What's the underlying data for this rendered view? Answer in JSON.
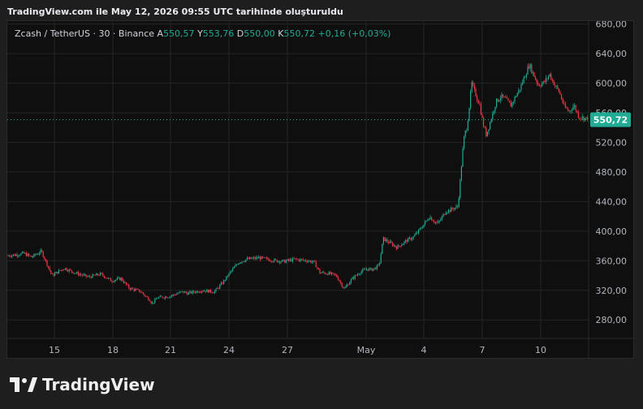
{
  "caption": "TradingView.com ile May 12, 2026 09:55 UTC tarihinde oluşturuldu",
  "legend": {
    "symbol": "Zcash / TetherUS · 30 · Binance",
    "open_label": "A",
    "open": "550,57",
    "high_label": "Y",
    "high": "553,76",
    "low_label": "D",
    "low": "550,00",
    "close_label": "K",
    "close": "550,72",
    "change": "+0,16 (+0,03%)"
  },
  "brand": "TradingView",
  "colors": {
    "up": "#22ab94",
    "down": "#f23645",
    "last_price": "#22ab94",
    "grid": "#242424"
  },
  "chart_data": {
    "type": "candlestick",
    "title": "Zcash / TetherUS · 30 · Binance",
    "ylim": [
      255,
      684
    ],
    "y_ticks": [
      "680,00",
      "640,00",
      "600,00",
      "560,00",
      "520,00",
      "480,00",
      "440,00",
      "400,00",
      "360,00",
      "320,00",
      "280,00"
    ],
    "y_tick_values": [
      680,
      640,
      600,
      560,
      520,
      480,
      440,
      400,
      360,
      320,
      280
    ],
    "x_ticks": [
      "15",
      "18",
      "21",
      "24",
      "27",
      "May",
      "4",
      "7",
      "10"
    ],
    "last_price": 550.72,
    "last_price_label": "550,72",
    "trend": [
      [
        0,
        367
      ],
      [
        10,
        368
      ],
      [
        20,
        370
      ],
      [
        30,
        365
      ],
      [
        42,
        373
      ],
      [
        55,
        340
      ],
      [
        70,
        350
      ],
      [
        85,
        343
      ],
      [
        100,
        338
      ],
      [
        115,
        342
      ],
      [
        128,
        333
      ],
      [
        140,
        336
      ],
      [
        150,
        323
      ],
      [
        160,
        320
      ],
      [
        165,
        318
      ],
      [
        170,
        312
      ],
      [
        175,
        308
      ],
      [
        178,
        302
      ],
      [
        185,
        310
      ],
      [
        200,
        312
      ],
      [
        210,
        316
      ],
      [
        216,
        318
      ],
      [
        222,
        316
      ],
      [
        240,
        320
      ],
      [
        255,
        318
      ],
      [
        265,
        330
      ],
      [
        275,
        345
      ],
      [
        285,
        358
      ],
      [
        295,
        362
      ],
      [
        310,
        364
      ],
      [
        325,
        361
      ],
      [
        340,
        359
      ],
      [
        355,
        362
      ],
      [
        370,
        360
      ],
      [
        378,
        358
      ],
      [
        385,
        344
      ],
      [
        395,
        343
      ],
      [
        405,
        340
      ],
      [
        415,
        322
      ],
      [
        425,
        336
      ],
      [
        435,
        345
      ],
      [
        443,
        349
      ],
      [
        448,
        348
      ],
      [
        453,
        350
      ],
      [
        458,
        354
      ],
      [
        460,
        368
      ],
      [
        463,
        390
      ],
      [
        470,
        385
      ],
      [
        480,
        378
      ],
      [
        490,
        386
      ],
      [
        500,
        392
      ],
      [
        508,
        402
      ],
      [
        515,
        412
      ],
      [
        520,
        420
      ],
      [
        525,
        414
      ],
      [
        530,
        410
      ],
      [
        535,
        418
      ],
      [
        540,
        427
      ],
      [
        545,
        428
      ],
      [
        548,
        430
      ],
      [
        552,
        432
      ],
      [
        555,
        433
      ],
      [
        558,
        470
      ],
      [
        561,
        510
      ],
      [
        563,
        530
      ],
      [
        566,
        540
      ],
      [
        568,
        558
      ],
      [
        572,
        600
      ],
      [
        575,
        590
      ],
      [
        578,
        582
      ],
      [
        582,
        570
      ],
      [
        586,
        545
      ],
      [
        590,
        530
      ],
      [
        596,
        552
      ],
      [
        602,
        575
      ],
      [
        608,
        582
      ],
      [
        614,
        578
      ],
      [
        620,
        570
      ],
      [
        626,
        582
      ],
      [
        632,
        594
      ],
      [
        638,
        612
      ],
      [
        643,
        625
      ],
      [
        648,
        612
      ],
      [
        654,
        598
      ],
      [
        660,
        600
      ],
      [
        664,
        605
      ],
      [
        668,
        612
      ],
      [
        674,
        598
      ],
      [
        680,
        588
      ],
      [
        686,
        568
      ],
      [
        692,
        562
      ],
      [
        698,
        570
      ],
      [
        704,
        555
      ],
      [
        710,
        553
      ],
      [
        716,
        550.72
      ]
    ]
  }
}
